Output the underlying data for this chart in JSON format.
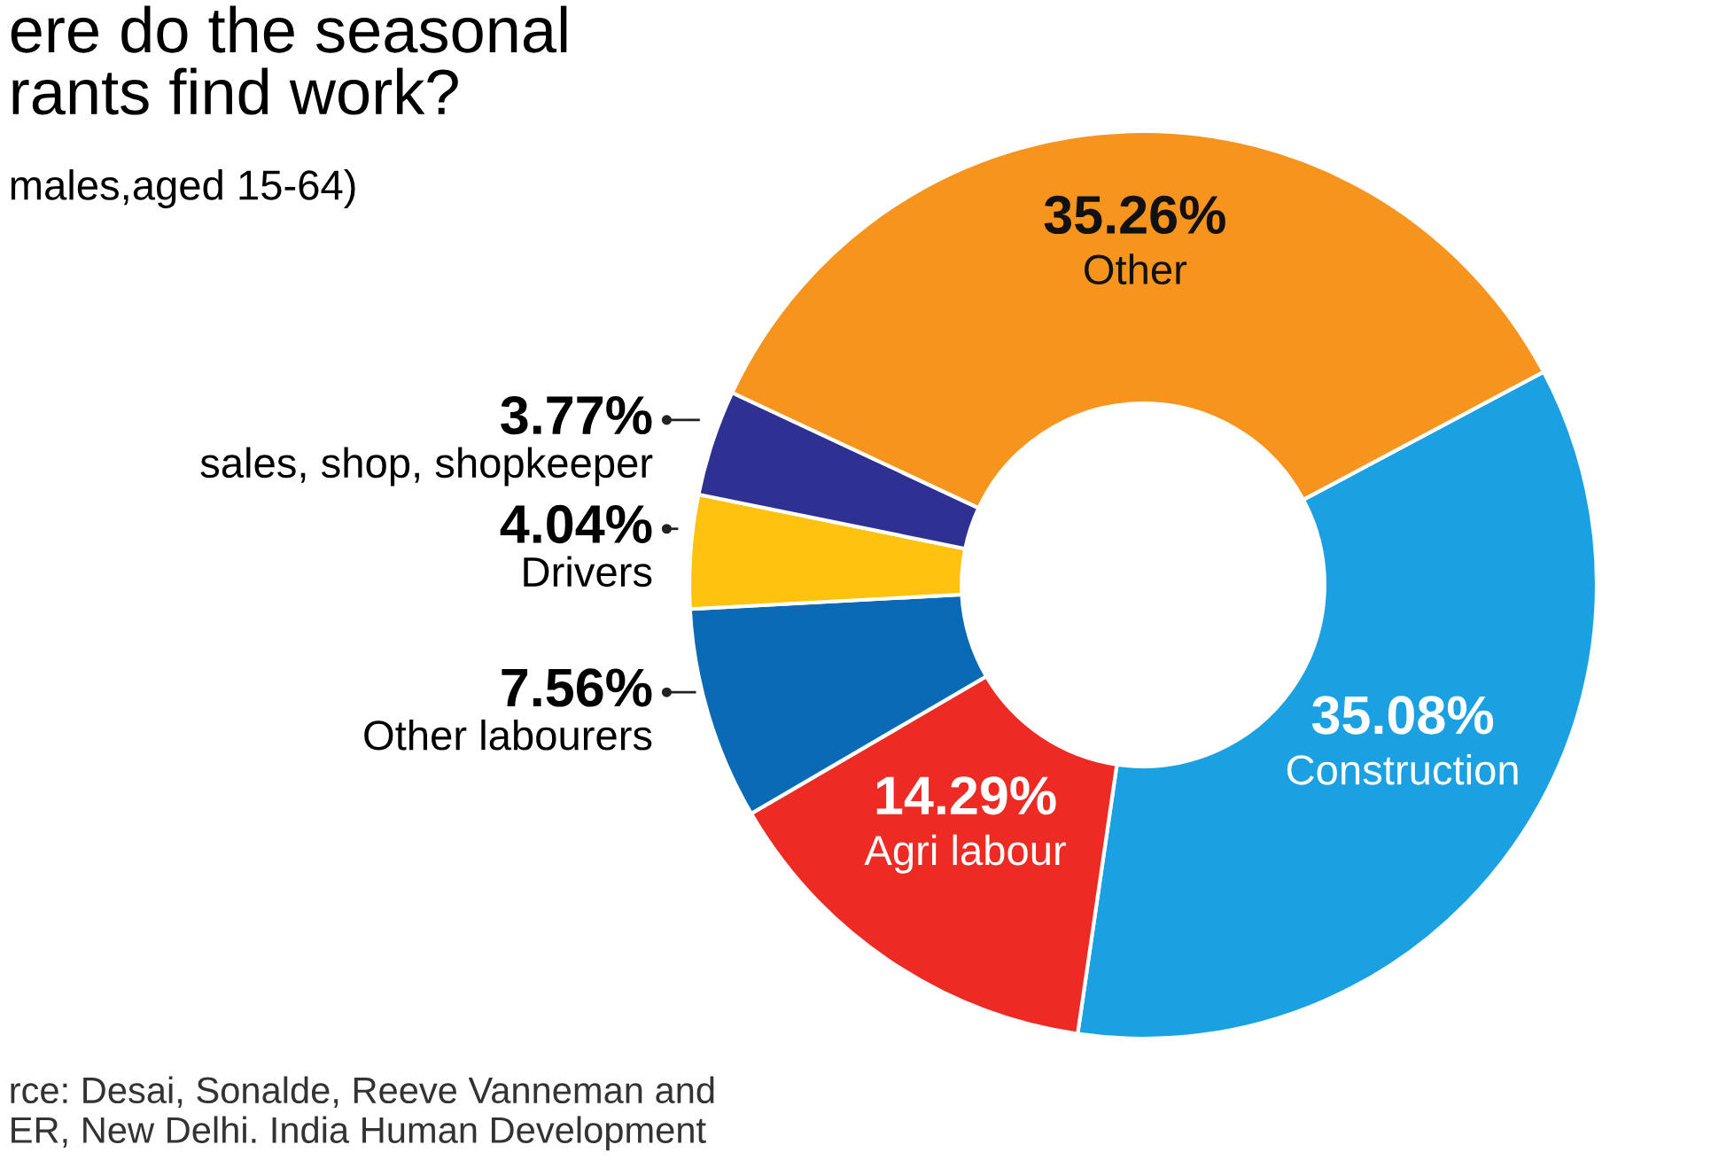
{
  "chart_data": {
    "type": "donut",
    "title": "ere do the seasonal\nrants find work?",
    "subtitle": "males,aged 15-64)",
    "categories": [
      "Construction",
      "Agri labour",
      "Other labourers",
      "Drivers",
      "sales, shop, shopkeeper",
      "Other"
    ],
    "values": [
      35.08,
      14.29,
      7.56,
      4.04,
      3.77,
      35.26
    ],
    "colors": [
      "#1ba1e2",
      "#ee2a24",
      "#0a6ab5",
      "#ffc20e",
      "#2e3192",
      "#f7941d"
    ],
    "value_labels": [
      "35.08%",
      "14.29%",
      "7.56%",
      "4.04%",
      "3.77%",
      "35.26%"
    ],
    "legend": false,
    "annotations": [
      "rce: Desai, Sonalde, Reeve Vanneman and\nER, New Delhi. India Human Development"
    ]
  }
}
